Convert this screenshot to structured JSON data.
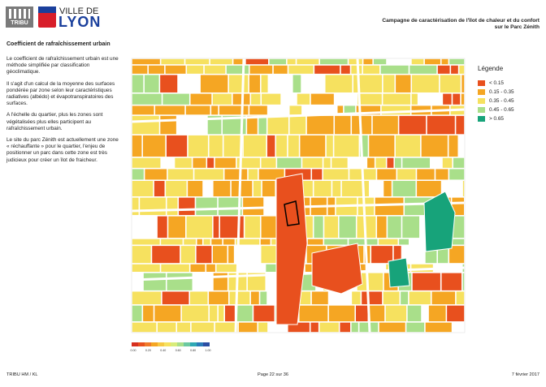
{
  "logo": {
    "tribu": "TRIBU",
    "ville": "VILLE DE",
    "lyon": "LYON"
  },
  "header": {
    "title_lines": [
      "Campagne de caractérisation de l'îlot de chaleur et du confort",
      "sur le Parc Zénith"
    ]
  },
  "section_title": "Coefficient de rafraîchissement urbain",
  "paragraphs": [
    "Le coefficient de rafraîchissement urbain est une méthode simplifiée par classification géoclimatique.",
    "Il s'agit d'un calcul de la moyenne des surfaces pondérée par zone selon leur caractéristiques radiatives (albédo) et évapotranspiratoires des surfaces.",
    "A l'échelle du quartier, plus les zones sont végétalisées plus elles participent au rafraîchissement urbain.",
    "Le site du parc Zénith est actuellement une zone « réchauffante » pour le quartier, l'enjeu de positionner un parc dans cette zone est très judicieux pour créer un îlot de fraicheur."
  ],
  "legend": {
    "title": "Légende",
    "items": [
      {
        "label": "< 0.15",
        "color": "#e8501e"
      },
      {
        "label": "0.15 - 0.35",
        "color": "#f5a623"
      },
      {
        "label": "0.35 - 0.45",
        "color": "#f6e15f"
      },
      {
        "label": "0.45 - 0.65",
        "color": "#a9df8a"
      },
      {
        "label": "> 0.65",
        "color": "#17a37a"
      }
    ]
  },
  "scale_labels": [
    "0.00",
    "0.20",
    "0.40",
    "0.60",
    "0.80",
    "1.00"
  ],
  "footer": {
    "left": "TRIBU HM / KL",
    "center": "Page 22 sur 36",
    "right": "7 février 2017"
  }
}
